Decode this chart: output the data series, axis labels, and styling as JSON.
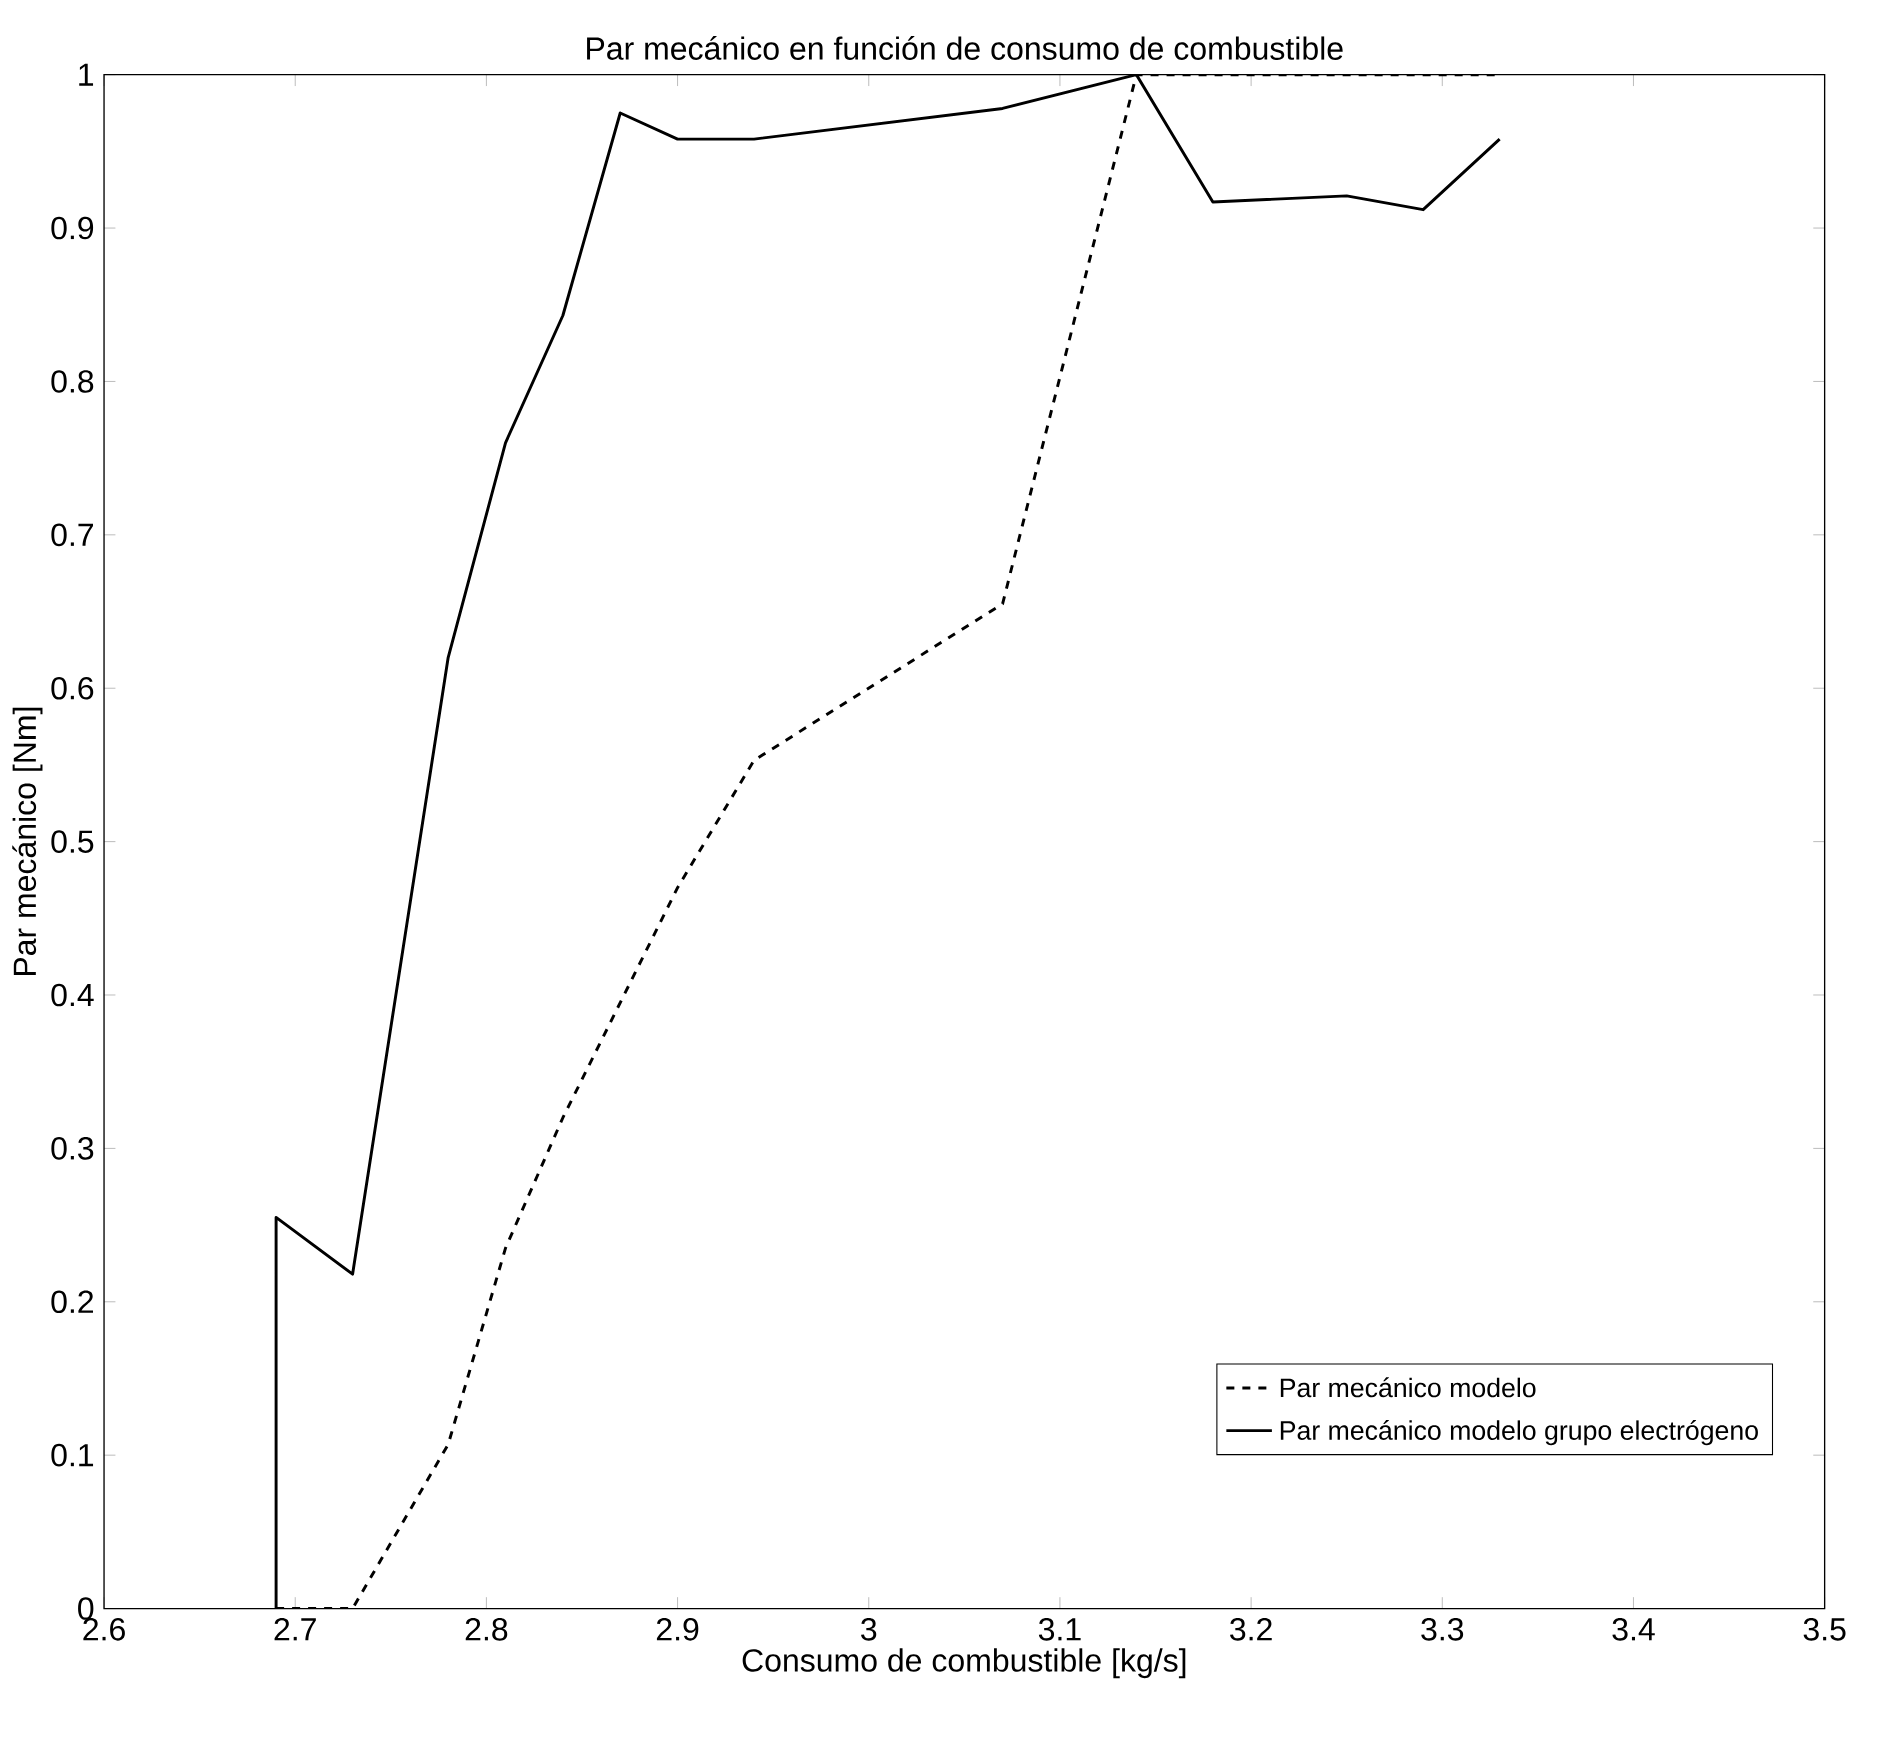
{
  "chart_data": {
    "type": "line",
    "title": "Par mecánico en función de consumo de combustible",
    "xlabel": "Consumo de combustible [kg/s]",
    "ylabel": "Par mecánico [Nm]",
    "xlim": [
      2.6,
      3.5
    ],
    "ylim": [
      0,
      1
    ],
    "xticks": [
      2.6,
      2.7,
      2.8,
      2.9,
      3,
      3.1,
      3.2,
      3.3,
      3.4,
      3.5
    ],
    "yticks": [
      0,
      0.1,
      0.2,
      0.3,
      0.4,
      0.5,
      0.6,
      0.7,
      0.8,
      0.9,
      1
    ],
    "grid": false,
    "legend": "bottom right",
    "marker": "none",
    "series": [
      {
        "name": "Par mecánico modelo",
        "color": "#000000",
        "line_style": "dashed",
        "x": [
          2.69,
          2.73,
          2.78,
          2.81,
          2.84,
          2.9,
          2.94,
          3.07,
          3.14,
          3.33
        ],
        "values": [
          0,
          0,
          0.107,
          0.235,
          0.32,
          0.47,
          0.553,
          0.655,
          1.0,
          1.0
        ]
      },
      {
        "name": "Par mecánico modelo grupo electrógeno",
        "color": "#000000",
        "line_style": "solid",
        "x": [
          2.69,
          2.69,
          2.73,
          2.78,
          2.81,
          2.84,
          2.87,
          2.9,
          2.94,
          3.07,
          3.14,
          3.18,
          3.25,
          3.29,
          3.33
        ],
        "values": [
          0,
          0.255,
          0.218,
          0.62,
          0.76,
          0.843,
          0.975,
          0.958,
          0.958,
          0.978,
          1.0,
          0.917,
          0.921,
          0.912,
          0.958
        ]
      }
    ]
  }
}
